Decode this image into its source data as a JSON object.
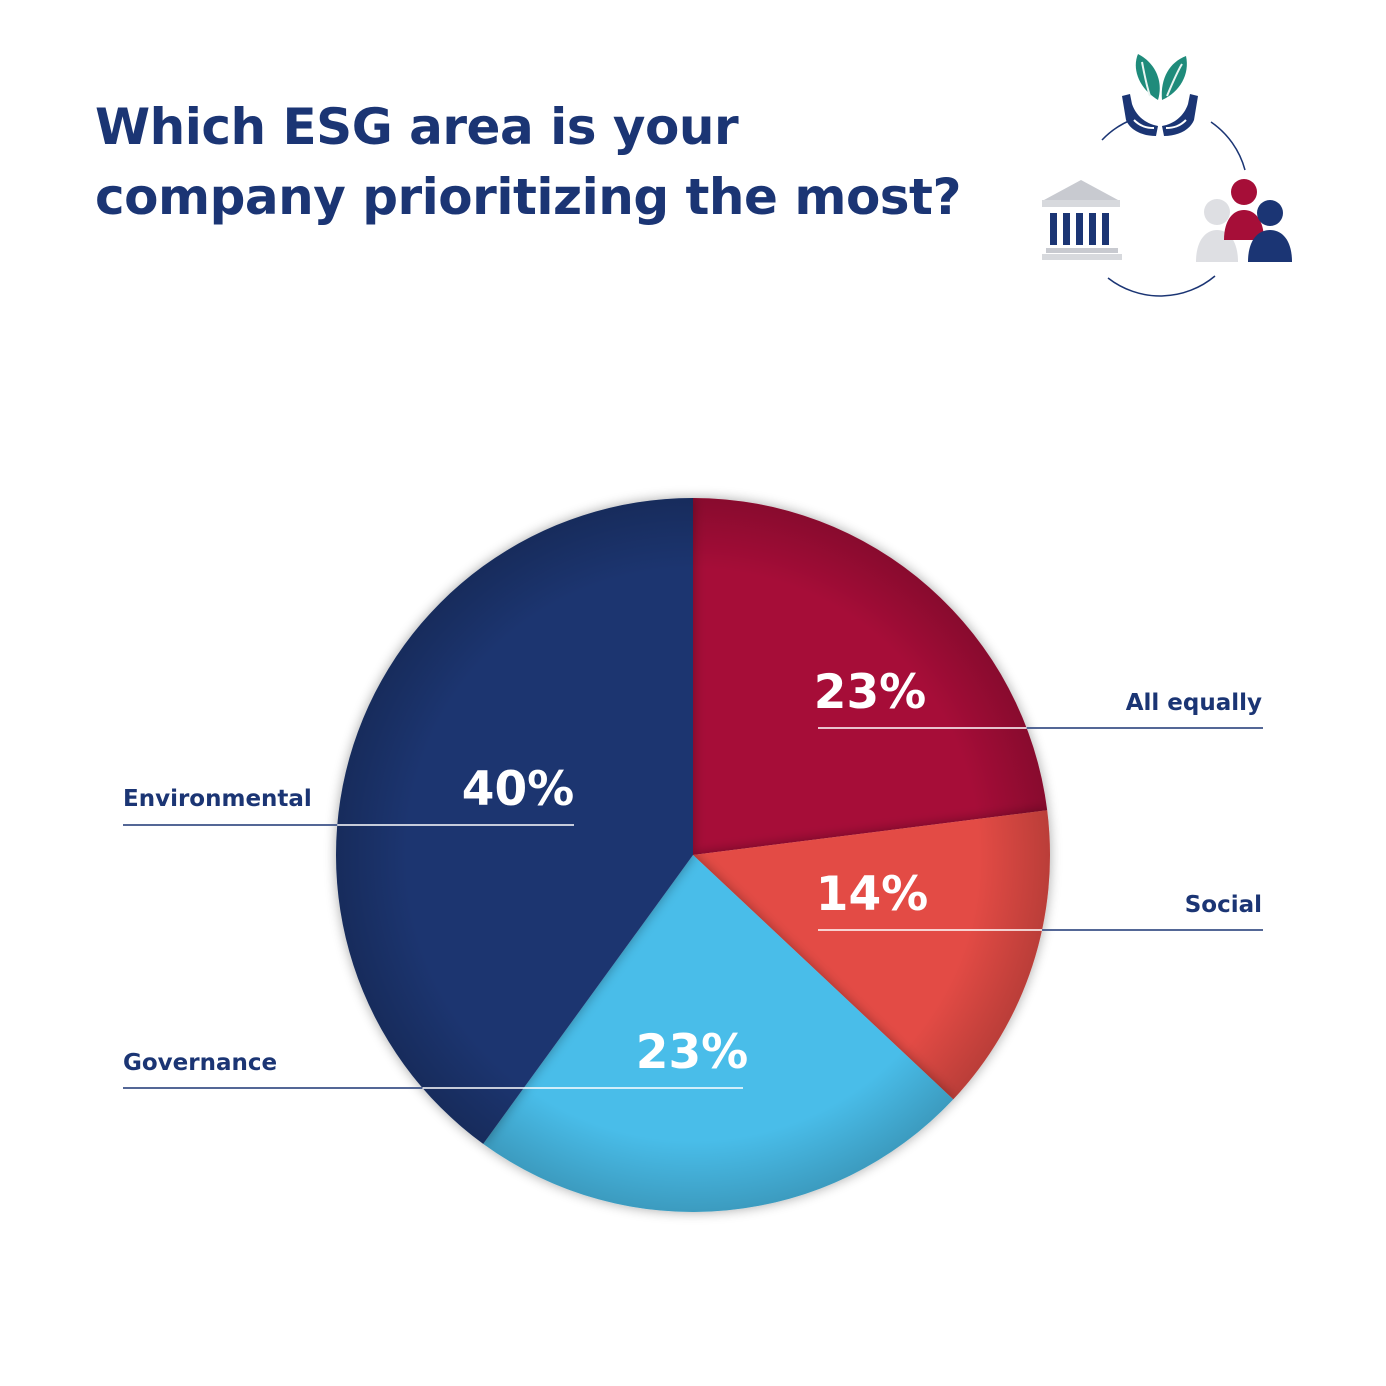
{
  "chart_data": {
    "type": "pie",
    "title_lines": [
      "Which ESG area is your",
      "company prioritizing the most?"
    ],
    "slices": [
      {
        "name": "All equally",
        "value": 23,
        "label": "23%",
        "color": "#a60e38"
      },
      {
        "name": "Social",
        "value": 14,
        "label": "14%",
        "color": "#e34c45"
      },
      {
        "name": "Governance",
        "value": 23,
        "label": "23%",
        "color": "#49bde9"
      },
      {
        "name": "Environmental",
        "value": 40,
        "label": "40%",
        "color": "#1b3570"
      }
    ],
    "unit": "%",
    "start_angle": "12 o'clock",
    "direction": "clockwise",
    "label_color": "#1b3574",
    "leader_line_color": "#1b3574"
  },
  "decoration": {
    "icon": "esg-cycle-icon",
    "parts": [
      "leaf-hands-icon",
      "bank-building-icon",
      "people-group-icon"
    ]
  }
}
